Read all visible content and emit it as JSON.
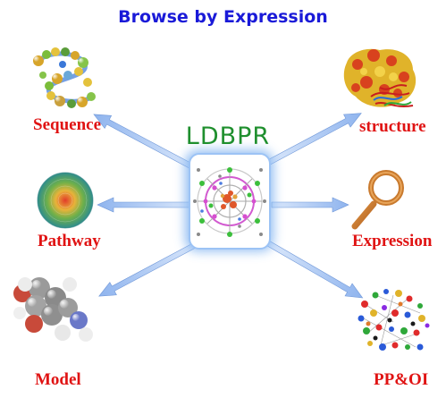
{
  "header": {
    "title": "Browse by Expression"
  },
  "center": {
    "label": "LDBPR"
  },
  "nodes": {
    "sequence": {
      "label": "Sequence",
      "icon": "protein-helix-icon"
    },
    "structure": {
      "label": "structure",
      "icon": "protein-surface-icon"
    },
    "pathway": {
      "label": "Pathway",
      "icon": "pathway-sphere-icon"
    },
    "expression": {
      "label": "Expression",
      "icon": "magnifier-icon"
    },
    "model": {
      "label": "Model",
      "icon": "molecule-model-icon"
    },
    "ppoi": {
      "label": "PP&OI",
      "icon": "interaction-network-icon"
    }
  },
  "colors": {
    "title": "#1a1ad8",
    "center_label": "#1f8f2e",
    "node_label": "#e01313",
    "arrow": "#a9c6f2",
    "hub_glow": "#7fb2f0"
  }
}
